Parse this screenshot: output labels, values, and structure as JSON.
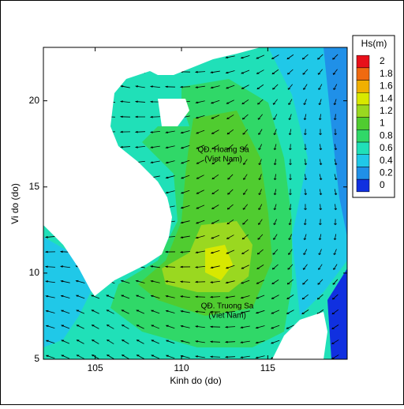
{
  "chart_data": {
    "type": "contour",
    "xlabel": "Kinh do (do)",
    "ylabel": "Vi do (do)",
    "xlim": [
      102,
      119.6
    ],
    "ylim": [
      5,
      23.1
    ],
    "xticks": [
      105,
      110,
      115
    ],
    "yticks": [
      5,
      10,
      15,
      20
    ],
    "colorbar": {
      "title": "Hs(m)",
      "ticks": [
        2,
        1.8,
        1.6,
        1.4,
        1.2,
        1,
        0.8,
        0.6,
        0.4,
        0.2,
        0
      ],
      "colors": [
        "#e8101a",
        "#f06a10",
        "#f0b000",
        "#d8e800",
        "#9ad820",
        "#50cc30",
        "#30d868",
        "#20e0b8",
        "#20c8e8",
        "#2090e8",
        "#1030e0"
      ]
    },
    "annotations": [
      "QĐ. Hoang Sa",
      "(Viet Nam)",
      "QĐ. Truong Sa",
      "(Viet Nam)"
    ]
  }
}
